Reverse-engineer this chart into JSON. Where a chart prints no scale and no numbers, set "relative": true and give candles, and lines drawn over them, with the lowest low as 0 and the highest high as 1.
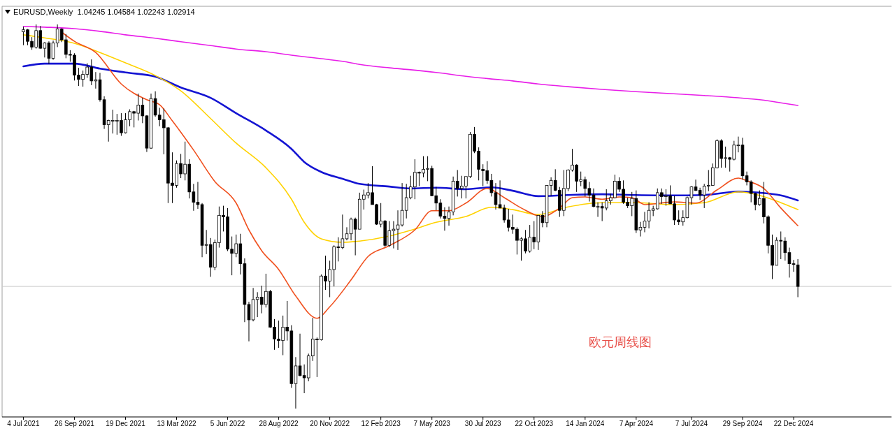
{
  "chart_data": {
    "type": "candlestick",
    "title": "EURUSD,Weekly  1.04245 1.04584 1.02243 1.02914",
    "relative": true,
    "xlim": [
      "2021-05-30",
      "2025-06-01"
    ],
    "xticks": [
      {
        "value": "2021-07-04",
        "label": "4 Jul 2021"
      },
      {
        "value": "2021-09-26",
        "label": "26 Sep 2021"
      },
      {
        "value": "2021-12-19",
        "label": "19 Dec 2021"
      },
      {
        "value": "2022-03-13",
        "label": "13 Mar 2022"
      },
      {
        "value": "2022-06-05",
        "label": "5 Jun 2022"
      },
      {
        "value": "2022-08-28",
        "label": "28 Aug 2022"
      },
      {
        "value": "2022-11-20",
        "label": "20 Nov 2022"
      },
      {
        "value": "2023-02-12",
        "label": "12 Feb 2023"
      },
      {
        "value": "2023-05-07",
        "label": "7 May 2023"
      },
      {
        "value": "2023-07-30",
        "label": "30 Jul 2023"
      },
      {
        "value": "2023-10-22",
        "label": "22 Oct 2023"
      },
      {
        "value": "2024-01-14",
        "label": "14 Jan 2024"
      },
      {
        "value": "2024-04-07",
        "label": "7 Apr 2024"
      },
      {
        "value": "2024-07-07",
        "label": "7 Jul 2024"
      },
      {
        "value": "2024-09-29",
        "label": "29 Sep 2024"
      },
      {
        "value": "2024-12-22",
        "label": "22 Dec 2024"
      }
    ],
    "x": [
      "2021-07-04",
      "2021-07-11",
      "2021-07-18",
      "2021-07-25",
      "2021-08-01",
      "2021-08-08",
      "2021-08-15",
      "2021-08-22",
      "2021-08-29",
      "2021-09-05",
      "2021-09-12",
      "2021-09-19",
      "2021-09-26",
      "2021-10-03",
      "2021-10-10",
      "2021-10-17",
      "2021-10-24",
      "2021-10-31",
      "2021-11-07",
      "2021-11-14",
      "2021-11-21",
      "2021-11-28",
      "2021-12-05",
      "2021-12-12",
      "2021-12-19",
      "2021-12-26",
      "2022-01-02",
      "2022-01-09",
      "2022-01-16",
      "2022-01-23",
      "2022-01-30",
      "2022-02-06",
      "2022-02-13",
      "2022-02-20",
      "2022-02-27",
      "2022-03-06",
      "2022-03-13",
      "2022-03-20",
      "2022-03-27",
      "2022-04-03",
      "2022-04-10",
      "2022-04-17",
      "2022-04-24",
      "2022-05-01",
      "2022-05-08",
      "2022-05-15",
      "2022-05-22",
      "2022-05-29",
      "2022-06-05",
      "2022-06-12",
      "2022-06-19",
      "2022-06-26",
      "2022-07-03",
      "2022-07-10",
      "2022-07-17",
      "2022-07-24",
      "2022-07-31",
      "2022-08-07",
      "2022-08-14",
      "2022-08-21",
      "2022-08-28",
      "2022-09-04",
      "2022-09-11",
      "2022-09-18",
      "2022-09-25",
      "2022-10-02",
      "2022-10-09",
      "2022-10-16",
      "2022-10-23",
      "2022-10-30",
      "2022-11-06",
      "2022-11-13",
      "2022-11-20",
      "2022-11-27",
      "2022-12-04",
      "2022-12-11",
      "2022-12-18",
      "2022-12-25",
      "2023-01-01",
      "2023-01-08",
      "2023-01-15",
      "2023-01-22",
      "2023-01-29",
      "2023-02-05",
      "2023-02-12",
      "2023-02-19",
      "2023-02-26",
      "2023-03-05",
      "2023-03-12",
      "2023-03-19",
      "2023-03-26",
      "2023-04-02",
      "2023-04-09",
      "2023-04-16",
      "2023-04-23",
      "2023-04-30",
      "2023-05-07",
      "2023-05-14",
      "2023-05-21",
      "2023-05-28",
      "2023-06-04",
      "2023-06-11",
      "2023-06-18",
      "2023-06-25",
      "2023-07-02",
      "2023-07-09",
      "2023-07-16",
      "2023-07-23",
      "2023-07-30",
      "2023-08-06",
      "2023-08-13",
      "2023-08-20",
      "2023-08-27",
      "2023-09-03",
      "2023-09-10",
      "2023-09-17",
      "2023-09-24",
      "2023-10-01",
      "2023-10-08",
      "2023-10-15",
      "2023-10-22",
      "2023-10-29",
      "2023-11-05",
      "2023-11-12",
      "2023-11-19",
      "2023-11-26",
      "2023-12-03",
      "2023-12-10",
      "2023-12-17",
      "2023-12-24",
      "2023-12-31",
      "2024-01-07",
      "2024-01-14",
      "2024-01-21",
      "2024-01-28",
      "2024-02-04",
      "2024-02-11",
      "2024-02-18",
      "2024-02-25",
      "2024-03-03",
      "2024-03-10",
      "2024-03-17",
      "2024-03-24",
      "2024-03-31",
      "2024-04-07",
      "2024-04-14",
      "2024-04-21",
      "2024-04-28",
      "2024-05-05",
      "2024-05-12",
      "2024-05-19",
      "2024-05-26",
      "2024-06-02",
      "2024-06-09",
      "2024-06-16",
      "2024-06-23",
      "2024-06-30",
      "2024-07-07",
      "2024-07-14",
      "2024-07-21",
      "2024-07-28",
      "2024-08-04",
      "2024-08-11",
      "2024-08-18",
      "2024-08-25",
      "2024-09-01",
      "2024-09-08",
      "2024-09-15",
      "2024-09-22",
      "2024-09-29",
      "2024-10-06",
      "2024-10-13",
      "2024-10-20",
      "2024-10-27",
      "2024-11-03",
      "2024-11-10",
      "2024-11-17",
      "2024-11-24",
      "2024-12-01",
      "2024-12-08",
      "2024-12-15",
      "2024-12-22",
      "2024-12-29"
    ],
    "ohlc": [
      [
        0.981,
        0.994,
        0.946,
        0.986
      ],
      [
        0.986,
        0.988,
        0.946,
        0.956
      ],
      [
        0.956,
        0.967,
        0.934,
        0.941
      ],
      [
        0.941,
        1,
        0.937,
        0.984
      ],
      [
        0.984,
        0.996,
        0.937,
        0.938
      ],
      [
        0.938,
        0.954,
        0.914,
        0.952
      ],
      [
        0.952,
        0.956,
        0.897,
        0.912
      ],
      [
        0.912,
        0.958,
        0.908,
        0.952
      ],
      [
        0.952,
        1,
        0.941,
        0.988
      ],
      [
        0.988,
        0.99,
        0.954,
        0.96
      ],
      [
        0.96,
        0.975,
        0.912,
        0.922
      ],
      [
        0.922,
        0.933,
        0.903,
        0.92
      ],
      [
        0.92,
        0.925,
        0.854,
        0.868
      ],
      [
        0.868,
        0.887,
        0.84,
        0.857
      ],
      [
        0.857,
        0.88,
        0.838,
        0.87
      ],
      [
        0.87,
        0.899,
        0.861,
        0.889
      ],
      [
        0.889,
        0.909,
        0.842,
        0.853
      ],
      [
        0.853,
        0.876,
        0.833,
        0.856
      ],
      [
        0.856,
        0.874,
        0.799,
        0.804
      ],
      [
        0.804,
        0.813,
        0.728,
        0.739
      ],
      [
        0.739,
        0.752,
        0.695,
        0.75
      ],
      [
        0.75,
        0.778,
        0.716,
        0.75
      ],
      [
        0.75,
        0.767,
        0.713,
        0.75
      ],
      [
        0.75,
        0.769,
        0.71,
        0.718
      ],
      [
        0.718,
        0.769,
        0.716,
        0.752
      ],
      [
        0.752,
        0.779,
        0.735,
        0.773
      ],
      [
        0.773,
        0.775,
        0.732,
        0.769
      ],
      [
        0.769,
        0.82,
        0.75,
        0.79
      ],
      [
        0.79,
        0.809,
        0.743,
        0.762
      ],
      [
        0.762,
        0.764,
        0.668,
        0.678
      ],
      [
        0.678,
        0.82,
        0.676,
        0.807
      ],
      [
        0.807,
        0.826,
        0.76,
        0.764
      ],
      [
        0.764,
        0.783,
        0.735,
        0.752
      ],
      [
        0.752,
        0.781,
        0.662,
        0.731
      ],
      [
        0.731,
        0.733,
        0.535,
        0.587
      ],
      [
        0.587,
        0.667,
        0.535,
        0.581
      ],
      [
        0.581,
        0.646,
        0.575,
        0.638
      ],
      [
        0.638,
        0.663,
        0.6,
        0.611
      ],
      [
        0.611,
        0.695,
        0.594,
        0.636
      ],
      [
        0.636,
        0.649,
        0.547,
        0.564
      ],
      [
        0.564,
        0.585,
        0.515,
        0.537
      ],
      [
        0.537,
        0.59,
        0.52,
        0.531
      ],
      [
        0.531,
        0.535,
        0.394,
        0.425
      ],
      [
        0.425,
        0.465,
        0.402,
        0.427
      ],
      [
        0.427,
        0.444,
        0.343,
        0.368
      ],
      [
        0.368,
        0.44,
        0.36,
        0.432
      ],
      [
        0.432,
        0.526,
        0.419,
        0.503
      ],
      [
        0.503,
        0.528,
        0.461,
        0.499
      ],
      [
        0.499,
        0.522,
        0.41,
        0.415
      ],
      [
        0.415,
        0.448,
        0.347,
        0.404
      ],
      [
        0.404,
        0.453,
        0.394,
        0.429
      ],
      [
        0.429,
        0.455,
        0.349,
        0.377
      ],
      [
        0.377,
        0.391,
        0.225,
        0.271
      ],
      [
        0.271,
        0.278,
        0.175,
        0.231
      ],
      [
        0.231,
        0.314,
        0.227,
        0.284
      ],
      [
        0.284,
        0.303,
        0.238,
        0.29
      ],
      [
        0.29,
        0.32,
        0.248,
        0.271
      ],
      [
        0.271,
        0.351,
        0.263,
        0.305
      ],
      [
        0.305,
        0.309,
        0.21,
        0.212
      ],
      [
        0.212,
        0.233,
        0.153,
        0.181
      ],
      [
        0.181,
        0.229,
        0.158,
        0.177
      ],
      [
        0.177,
        0.242,
        0.139,
        0.212
      ],
      [
        0.212,
        0.28,
        0.177,
        0.202
      ],
      [
        0.202,
        0.217,
        0.054,
        0.065
      ],
      [
        0.065,
        0.134,
        0,
        0.111
      ],
      [
        0.111,
        0.195,
        0.084,
        0.086
      ],
      [
        0.086,
        0.115,
        0.04,
        0.08
      ],
      [
        0.08,
        0.143,
        0.071,
        0.137
      ],
      [
        0.137,
        0.236,
        0.124,
        0.181
      ],
      [
        0.181,
        0.185,
        0.082,
        0.179
      ],
      [
        0.179,
        0.349,
        0.177,
        0.345
      ],
      [
        0.345,
        0.398,
        0.309,
        0.332
      ],
      [
        0.332,
        0.385,
        0.29,
        0.362
      ],
      [
        0.362,
        0.425,
        0.318,
        0.421
      ],
      [
        0.421,
        0.446,
        0.383,
        0.419
      ],
      [
        0.419,
        0.505,
        0.415,
        0.442
      ],
      [
        0.442,
        0.472,
        0.438,
        0.455
      ],
      [
        0.455,
        0.497,
        0.438,
        0.493
      ],
      [
        0.493,
        0.497,
        0.399,
        0.467
      ],
      [
        0.467,
        0.562,
        0.467,
        0.545
      ],
      [
        0.545,
        0.57,
        0.518,
        0.556
      ],
      [
        0.556,
        0.587,
        0.547,
        0.562
      ],
      [
        0.562,
        0.631,
        0.531,
        0.531
      ],
      [
        0.531,
        0.533,
        0.478,
        0.48
      ],
      [
        0.48,
        0.535,
        0.472,
        0.488
      ],
      [
        0.488,
        0.491,
        0.421,
        0.425
      ],
      [
        0.425,
        0.488,
        0.421,
        0.463
      ],
      [
        0.463,
        0.488,
        0.417,
        0.467
      ],
      [
        0.467,
        0.516,
        0.413,
        0.478
      ],
      [
        0.478,
        0.587,
        0.474,
        0.516
      ],
      [
        0.516,
        0.585,
        0.495,
        0.549
      ],
      [
        0.549,
        0.606,
        0.545,
        0.577
      ],
      [
        0.577,
        0.649,
        0.545,
        0.615
      ],
      [
        0.615,
        0.617,
        0.579,
        0.613
      ],
      [
        0.613,
        0.657,
        0.602,
        0.623
      ],
      [
        0.623,
        0.657,
        0.592,
        0.625
      ],
      [
        0.625,
        0.632,
        0.554,
        0.554
      ],
      [
        0.554,
        0.577,
        0.516,
        0.535
      ],
      [
        0.535,
        0.545,
        0.495,
        0.501
      ],
      [
        0.501,
        0.524,
        0.463,
        0.495
      ],
      [
        0.495,
        0.526,
        0.476,
        0.512
      ],
      [
        0.512,
        0.604,
        0.503,
        0.592
      ],
      [
        0.592,
        0.621,
        0.552,
        0.573
      ],
      [
        0.573,
        0.606,
        0.547,
        0.579
      ],
      [
        0.579,
        0.604,
        0.547,
        0.604
      ],
      [
        0.604,
        0.72,
        0.6,
        0.714
      ],
      [
        0.714,
        0.733,
        0.665,
        0.67
      ],
      [
        0.67,
        0.68,
        0.594,
        0.623
      ],
      [
        0.623,
        0.636,
        0.579,
        0.619
      ],
      [
        0.619,
        0.644,
        0.585,
        0.594
      ],
      [
        0.594,
        0.611,
        0.552,
        0.562
      ],
      [
        0.562,
        0.587,
        0.518,
        0.531
      ],
      [
        0.531,
        0.594,
        0.522,
        0.522
      ],
      [
        0.522,
        0.531,
        0.484,
        0.491
      ],
      [
        0.491,
        0.52,
        0.461,
        0.472
      ],
      [
        0.472,
        0.505,
        0.455,
        0.467
      ],
      [
        0.467,
        0.472,
        0.401,
        0.438
      ],
      [
        0.438,
        0.446,
        0.385,
        0.442
      ],
      [
        0.442,
        0.465,
        0.404,
        0.41
      ],
      [
        0.41,
        0.478,
        0.406,
        0.446
      ],
      [
        0.446,
        0.488,
        0.415,
        0.434
      ],
      [
        0.434,
        0.503,
        0.413,
        0.503
      ],
      [
        0.503,
        0.514,
        0.472,
        0.484
      ],
      [
        0.484,
        0.581,
        0.472,
        0.581
      ],
      [
        0.581,
        0.602,
        0.554,
        0.594
      ],
      [
        0.594,
        0.623,
        0.566,
        0.568
      ],
      [
        0.568,
        0.577,
        0.499,
        0.516
      ],
      [
        0.516,
        0.621,
        0.501,
        0.573
      ],
      [
        0.573,
        0.623,
        0.566,
        0.621
      ],
      [
        0.621,
        0.676,
        0.617,
        0.634
      ],
      [
        0.634,
        0.636,
        0.564,
        0.592
      ],
      [
        0.592,
        0.617,
        0.579,
        0.596
      ],
      [
        0.596,
        0.604,
        0.552,
        0.573
      ],
      [
        0.573,
        0.59,
        0.539,
        0.556
      ],
      [
        0.556,
        0.573,
        0.524,
        0.526
      ],
      [
        0.526,
        0.537,
        0.499,
        0.526
      ],
      [
        0.526,
        0.537,
        0.488,
        0.522
      ],
      [
        0.522,
        0.571,
        0.516,
        0.541
      ],
      [
        0.541,
        0.56,
        0.531,
        0.549
      ],
      [
        0.549,
        0.609,
        0.547,
        0.592
      ],
      [
        0.592,
        0.602,
        0.564,
        0.571
      ],
      [
        0.571,
        0.594,
        0.533,
        0.537
      ],
      [
        0.537,
        0.549,
        0.522,
        0.528
      ],
      [
        0.528,
        0.564,
        0.501,
        0.547
      ],
      [
        0.547,
        0.568,
        0.457,
        0.465
      ],
      [
        0.465,
        0.486,
        0.448,
        0.472
      ],
      [
        0.472,
        0.512,
        0.459,
        0.488
      ],
      [
        0.488,
        0.537,
        0.469,
        0.516
      ],
      [
        0.516,
        0.528,
        0.501,
        0.52
      ],
      [
        0.52,
        0.573,
        0.518,
        0.562
      ],
      [
        0.562,
        0.573,
        0.533,
        0.552
      ],
      [
        0.552,
        0.571,
        0.528,
        0.554
      ],
      [
        0.554,
        0.581,
        0.533,
        0.533
      ],
      [
        0.533,
        0.554,
        0.478,
        0.491
      ],
      [
        0.491,
        0.516,
        0.478,
        0.486
      ],
      [
        0.486,
        0.516,
        0.476,
        0.497
      ],
      [
        0.497,
        0.552,
        0.495,
        0.549
      ],
      [
        0.549,
        0.579,
        0.531,
        0.577
      ],
      [
        0.577,
        0.596,
        0.566,
        0.568
      ],
      [
        0.568,
        0.575,
        0.543,
        0.556
      ],
      [
        0.556,
        0.585,
        0.522,
        0.579
      ],
      [
        0.579,
        0.621,
        0.566,
        0.581
      ],
      [
        0.581,
        0.638,
        0.581,
        0.627
      ],
      [
        0.627,
        0.701,
        0.625,
        0.697
      ],
      [
        0.697,
        0.701,
        0.627,
        0.651
      ],
      [
        0.651,
        0.682,
        0.627,
        0.653
      ],
      [
        0.653,
        0.655,
        0.617,
        0.649
      ],
      [
        0.649,
        0.697,
        0.646,
        0.686
      ],
      [
        0.686,
        0.708,
        0.667,
        0.686
      ],
      [
        0.686,
        0.705,
        0.596,
        0.606
      ],
      [
        0.606,
        0.617,
        0.581,
        0.59
      ],
      [
        0.59,
        0.594,
        0.537,
        0.56
      ],
      [
        0.56,
        0.562,
        0.516,
        0.531
      ],
      [
        0.531,
        0.568,
        0.528,
        0.547
      ],
      [
        0.547,
        0.59,
        0.482,
        0.499
      ],
      [
        0.499,
        0.503,
        0.404,
        0.425
      ],
      [
        0.425,
        0.453,
        0.337,
        0.373
      ],
      [
        0.373,
        0.446,
        0.373,
        0.438
      ],
      [
        0.438,
        0.461,
        0.389,
        0.436
      ],
      [
        0.436,
        0.446,
        0.385,
        0.406
      ],
      [
        0.406,
        0.419,
        0.341,
        0.377
      ],
      [
        0.377,
        0.387,
        0.356,
        0.375
      ],
      [
        0.374,
        0.389,
        0.29,
        0.318
      ]
    ],
    "series": [
      {
        "type": "line",
        "color": "#e81ee8",
        "x": [
          "2021-07-04",
          "2021-08-08",
          "2021-09-26",
          "2021-11-07",
          "2021-12-19",
          "2022-02-06",
          "2022-03-20",
          "2022-05-08",
          "2022-06-19",
          "2022-08-07",
          "2022-09-18",
          "2022-10-09",
          "2022-11-06",
          "2022-12-11",
          "2023-01-08",
          "2023-02-26",
          "2023-04-02",
          "2023-05-14",
          "2023-07-02",
          "2023-08-13",
          "2023-09-17",
          "2023-10-29",
          "2023-12-17",
          "2024-02-11",
          "2024-04-07",
          "2024-06-02",
          "2024-07-28",
          "2024-09-22",
          "2024-10-27",
          "2024-12-01",
          "2024-12-29"
        ],
        "values": [
          0.995,
          0.993,
          0.989,
          0.982,
          0.973,
          0.964,
          0.955,
          0.945,
          0.936,
          0.929,
          0.92,
          0.916,
          0.911,
          0.904,
          0.896,
          0.887,
          0.882,
          0.875,
          0.865,
          0.858,
          0.853,
          0.845,
          0.838,
          0.831,
          0.825,
          0.82,
          0.815,
          0.809,
          0.804,
          0.796,
          0.789
        ]
      },
      {
        "type": "line",
        "color": "#1414d2",
        "x": [
          "2021-07-04",
          "2021-08-08",
          "2021-09-26",
          "2021-11-07",
          "2021-12-19",
          "2022-02-06",
          "2022-03-20",
          "2022-05-08",
          "2022-06-19",
          "2022-08-07",
          "2022-09-18",
          "2022-10-09",
          "2022-11-06",
          "2022-12-11",
          "2023-01-08",
          "2023-02-26",
          "2023-04-02",
          "2023-05-14",
          "2023-07-02",
          "2023-08-13",
          "2023-09-17",
          "2023-10-29",
          "2023-12-17",
          "2024-02-11",
          "2024-04-07",
          "2024-06-02",
          "2024-07-28",
          "2024-09-22",
          "2024-10-27",
          "2024-12-01",
          "2024-12-29"
        ],
        "values": [
          0.891,
          0.898,
          0.898,
          0.885,
          0.875,
          0.864,
          0.836,
          0.809,
          0.769,
          0.724,
          0.676,
          0.642,
          0.616,
          0.598,
          0.585,
          0.578,
          0.573,
          0.575,
          0.571,
          0.576,
          0.567,
          0.553,
          0.556,
          0.558,
          0.556,
          0.555,
          0.556,
          0.565,
          0.562,
          0.555,
          0.542
        ]
      },
      {
        "type": "line",
        "color": "#ffd200",
        "x": [
          "2021-07-04",
          "2021-08-08",
          "2021-09-26",
          "2021-11-07",
          "2021-12-19",
          "2022-02-06",
          "2022-03-20",
          "2022-05-08",
          "2022-06-19",
          "2022-08-07",
          "2022-09-18",
          "2022-10-09",
          "2022-11-06",
          "2022-12-11",
          "2023-01-08",
          "2023-02-26",
          "2023-04-02",
          "2023-05-14",
          "2023-07-02",
          "2023-08-13",
          "2023-09-17",
          "2023-10-29",
          "2023-12-17",
          "2024-02-11",
          "2024-04-07",
          "2024-06-02",
          "2024-07-28",
          "2024-09-22",
          "2024-10-27",
          "2024-12-01",
          "2024-12-29"
        ],
        "values": [
          0.973,
          0.965,
          0.951,
          0.927,
          0.9,
          0.867,
          0.827,
          0.755,
          0.691,
          0.627,
          0.545,
          0.485,
          0.442,
          0.433,
          0.436,
          0.449,
          0.464,
          0.485,
          0.5,
          0.524,
          0.518,
          0.505,
          0.525,
          0.536,
          0.536,
          0.531,
          0.536,
          0.564,
          0.555,
          0.536,
          0.518
        ]
      },
      {
        "type": "line",
        "color": "#f0501e",
        "x": [
          "2021-09-05",
          "2021-09-26",
          "2021-10-31",
          "2021-12-12",
          "2022-01-23",
          "2022-02-13",
          "2022-03-06",
          "2022-04-10",
          "2022-05-15",
          "2022-06-19",
          "2022-07-10",
          "2022-07-31",
          "2022-08-28",
          "2022-09-25",
          "2022-10-30",
          "2022-11-20",
          "2022-12-25",
          "2023-01-22",
          "2023-02-26",
          "2023-04-09",
          "2023-05-07",
          "2023-06-04",
          "2023-07-02",
          "2023-08-06",
          "2023-09-03",
          "2023-10-01",
          "2023-11-05",
          "2023-12-03",
          "2023-12-24",
          "2024-01-14",
          "2024-02-11",
          "2024-03-10",
          "2024-03-31",
          "2024-04-21",
          "2024-06-09",
          "2024-07-14",
          "2024-08-18",
          "2024-09-22",
          "2024-10-06",
          "2024-11-03",
          "2024-12-01",
          "2024-12-29"
        ],
        "values": [
          0.98,
          0.956,
          0.927,
          0.845,
          0.804,
          0.791,
          0.749,
          0.673,
          0.591,
          0.535,
          0.465,
          0.411,
          0.362,
          0.293,
          0.235,
          0.265,
          0.335,
          0.396,
          0.424,
          0.465,
          0.515,
          0.515,
          0.535,
          0.573,
          0.549,
          0.522,
          0.5,
          0.522,
          0.549,
          0.551,
          0.545,
          0.551,
          0.549,
          0.531,
          0.538,
          0.535,
          0.569,
          0.6,
          0.593,
          0.573,
          0.522,
          0.476
        ]
      }
    ],
    "ref_lines": [
      {
        "axis": "y",
        "value": 0.318,
        "color": "#c8c8c8"
      }
    ],
    "annotations": [
      "欧元周线图"
    ]
  }
}
